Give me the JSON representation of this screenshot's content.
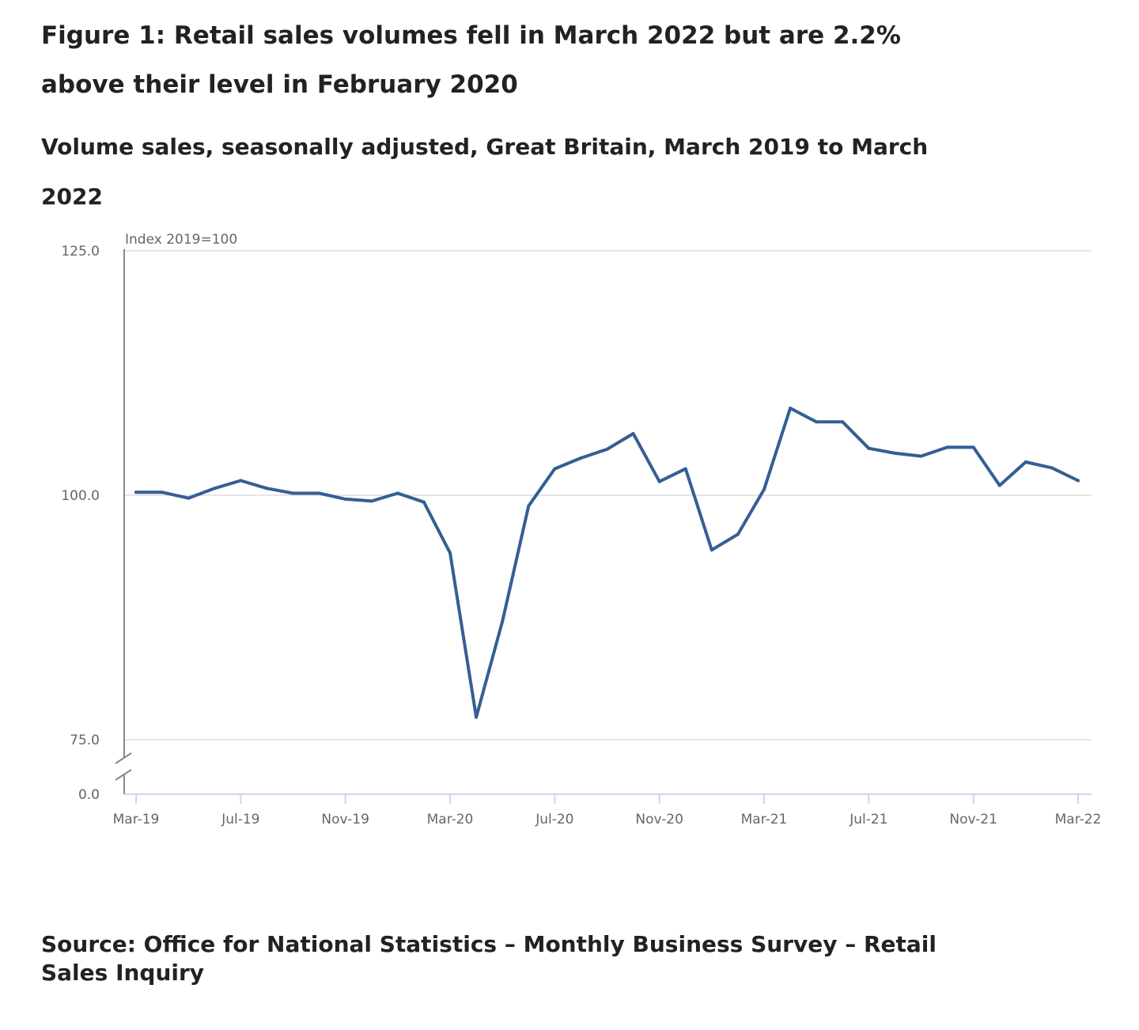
{
  "title": "Figure 1: Retail sales volumes fell in March 2022 but are 2.2% above their level in February 2020",
  "subtitle": "Volume sales, seasonally adjusted, Great Britain, March 2019 to March 2022",
  "source": "Source: Office for National Statistics – Monthly Business Survey – Retail Sales Inquiry",
  "chart_data": {
    "type": "line",
    "ylabel": "Index 2019=100",
    "y_ticks": [
      "125.0",
      "100.0",
      "75.0",
      "0.0"
    ],
    "ylim": [
      75,
      125
    ],
    "y_axis_break": true,
    "grid": "horizontal",
    "line_color": "#345f93",
    "x_tick_labels": [
      "Mar-19",
      "Jul-19",
      "Nov-19",
      "Mar-20",
      "Jul-20",
      "Nov-20",
      "Mar-21",
      "Jul-21",
      "Nov-21",
      "Mar-22"
    ],
    "x": [
      "Mar-19",
      "Apr-19",
      "May-19",
      "Jun-19",
      "Jul-19",
      "Aug-19",
      "Sep-19",
      "Oct-19",
      "Nov-19",
      "Dec-19",
      "Jan-20",
      "Feb-20",
      "Mar-20",
      "Apr-20",
      "May-20",
      "Jun-20",
      "Jul-20",
      "Aug-20",
      "Sep-20",
      "Oct-20",
      "Nov-20",
      "Dec-20",
      "Jan-21",
      "Feb-21",
      "Mar-21",
      "Apr-21",
      "May-21",
      "Jun-21",
      "Jul-21",
      "Aug-21",
      "Sep-21",
      "Oct-21",
      "Nov-21",
      "Dec-21",
      "Jan-22",
      "Feb-22",
      "Mar-22"
    ],
    "values": [
      100.3,
      100.3,
      99.7,
      100.7,
      101.5,
      100.7,
      100.2,
      100.2,
      99.6,
      99.4,
      100.2,
      99.3,
      94.1,
      77.3,
      87.1,
      98.9,
      102.7,
      103.8,
      104.7,
      106.3,
      101.4,
      102.7,
      94.4,
      96.0,
      100.6,
      108.9,
      107.5,
      107.5,
      104.8,
      104.3,
      104.0,
      104.9,
      104.9,
      101.0,
      103.4,
      102.8,
      101.5
    ]
  }
}
